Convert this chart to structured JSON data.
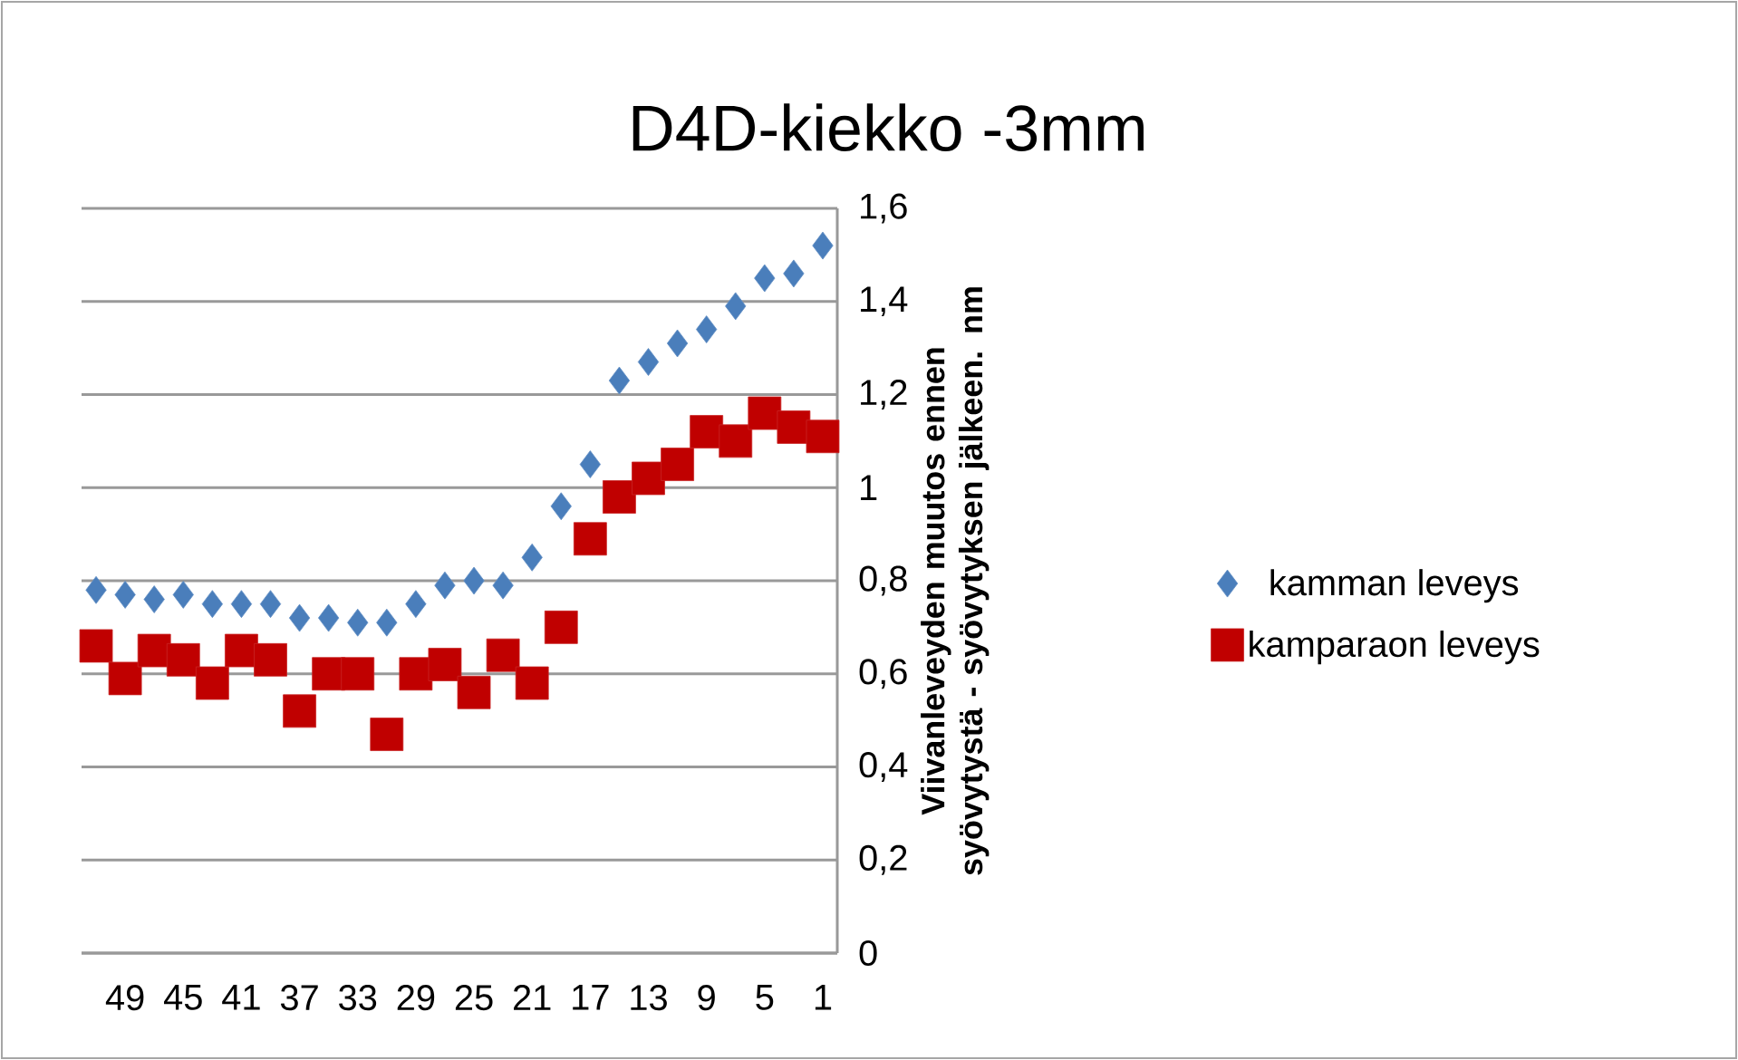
{
  "chart_data": {
    "type": "scatter",
    "title": "D4D-kiekko  -3mm",
    "ylabel": "Viivanleveyden muutos ennen syövytystä - syövytyksen jälkeen. nm",
    "categories": [
      null,
      "49",
      null,
      "45",
      null,
      "41",
      null,
      "37",
      null,
      "33",
      null,
      "29",
      null,
      "25",
      null,
      "21",
      null,
      "17",
      null,
      "13",
      null,
      "9",
      null,
      "5",
      null,
      "1"
    ],
    "series": [
      {
        "name": "kamman leveys",
        "color": "#4a7ebb",
        "marker": "diamond",
        "values": [
          0.78,
          0.77,
          0.76,
          0.77,
          0.75,
          0.75,
          0.75,
          0.72,
          0.72,
          0.71,
          0.71,
          0.75,
          0.79,
          0.8,
          0.79,
          0.85,
          0.96,
          1.05,
          1.23,
          1.27,
          1.31,
          1.34,
          1.39,
          1.45,
          1.46,
          1.52
        ]
      },
      {
        "name": "kamparaon leveys",
        "color": "#c00000",
        "marker": "square",
        "values": [
          0.66,
          0.59,
          0.65,
          0.63,
          0.58,
          0.65,
          0.63,
          0.52,
          0.6,
          0.6,
          0.47,
          0.6,
          0.62,
          0.56,
          0.64,
          0.58,
          0.7,
          0.89,
          0.98,
          1.02,
          1.05,
          1.12,
          1.1,
          1.16,
          1.13,
          1.11
        ]
      }
    ],
    "ylim": [
      0,
      1.6
    ],
    "yticks": [
      0,
      {
        "value": 0.2,
        "label": "0,2"
      },
      {
        "value": 0.4,
        "label": "0,4"
      },
      {
        "value": 0.6,
        "label": "0,6"
      },
      {
        "value": 0.8,
        "label": "0,8"
      },
      1,
      {
        "value": 1.2,
        "label": "1,2"
      },
      {
        "value": 1.4,
        "label": "1,4"
      },
      {
        "value": 1.6,
        "label": "1,6"
      }
    ],
    "grid": "y",
    "legend": "right"
  }
}
